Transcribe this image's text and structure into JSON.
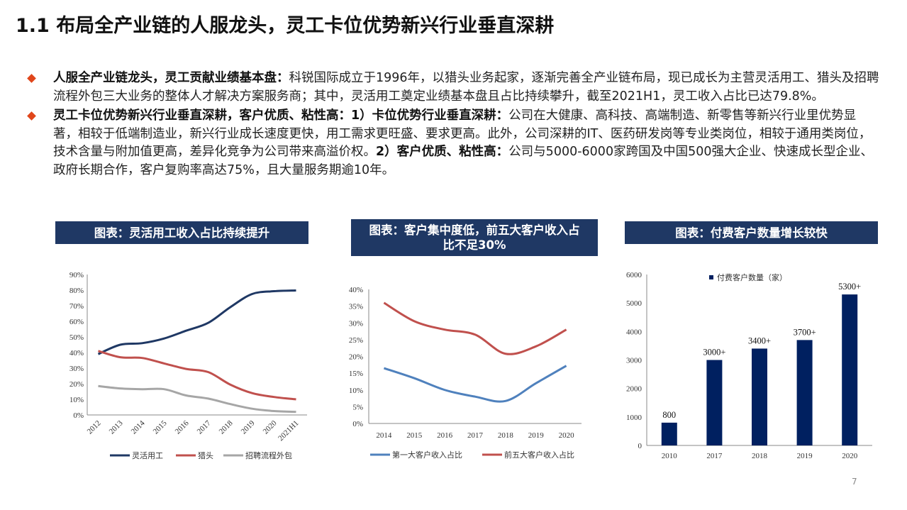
{
  "title": "1.1 布局全产业链的人服龙头，灵工卡位优势新兴行业垂直深耕",
  "bullets": [
    {
      "bold": "人服全产业链龙头，灵工贡献业绩基本盘：",
      "text": "科锐国际成立于1996年，以猎头业务起家，逐渐完善全产业链布局，现已成长为主营灵活用工、猎头及招聘流程外包三大业务的整体人才解决方案服务商；其中，灵活用工奠定业绩基本盘且占比持续攀升，截至2021H1，灵工收入占比已达79.8%。"
    },
    {
      "bold": "灵工卡位优势新兴行业垂直深耕，客户优质、粘性高：1）卡位优势行业垂直深耕：",
      "text": "公司在大健康、高科技、高端制造、新零售等新兴行业里优势显著，相较于低端制造业，新兴行业成长速度更快，用工需求更旺盛、要求更高。此外，公司深耕的IT、医药研发岗等专业类岗位，相较于通用类岗位，技术含量与附加值更高，差异化竞争为公司带来高溢价权。",
      "bold2": "2）客户优质、粘性高：",
      "text2": "公司与5000-6000家跨国及中国500强大企业、快速成长型企业、政府长期合作，客户复购率高达75%，且大量服务期逾10年。"
    }
  ],
  "captions": {
    "c1": "图表：灵活用工收入占比持续提升",
    "c2": "图表：客户集中度低，前五大客户收入占比不足30%",
    "c3": "图表：付费客户数量增长较快"
  },
  "page_number": "7",
  "chart_data": [
    {
      "type": "line",
      "categories": [
        "2012",
        "2013",
        "2014",
        "2015",
        "2016",
        "2017",
        "2018",
        "2019",
        "2020",
        "2021H1"
      ],
      "ylim": [
        0,
        90
      ],
      "y_ticks": [
        "0%",
        "10%",
        "20%",
        "30%",
        "40%",
        "50%",
        "60%",
        "70%",
        "80%",
        "90%"
      ],
      "series": [
        {
          "name": "灵活用工",
          "color": "#1f3864",
          "values": [
            39,
            45,
            46,
            49,
            54,
            59,
            69,
            77.5,
            79.3,
            79.8
          ]
        },
        {
          "name": "猎头",
          "color": "#c0504d",
          "values": [
            41,
            37,
            36.5,
            33,
            29.5,
            27.5,
            19.5,
            14,
            11.5,
            10
          ]
        },
        {
          "name": "招聘流程外包",
          "color": "#a6a6a6",
          "values": [
            18.5,
            17,
            16.5,
            16.5,
            12.5,
            10.5,
            7,
            4,
            2.5,
            2
          ]
        }
      ]
    },
    {
      "type": "line",
      "categories": [
        "2014",
        "2015",
        "2016",
        "2017",
        "2018",
        "2019",
        "2020"
      ],
      "ylim": [
        0,
        40
      ],
      "y_ticks": [
        "0%",
        "5%",
        "10%",
        "15%",
        "20%",
        "25%",
        "30%",
        "35%",
        "40%"
      ],
      "series": [
        {
          "name": "第一大客户收入占比",
          "color": "#4f81bd",
          "values": [
            16.5,
            13.5,
            10,
            8,
            6.7,
            12,
            17.2
          ]
        },
        {
          "name": "前五大客户收入占比",
          "color": "#c0504d",
          "values": [
            36,
            30.5,
            28,
            26.5,
            20.8,
            23,
            28
          ]
        }
      ]
    },
    {
      "type": "bar",
      "categories": [
        "2010",
        "2017",
        "2018",
        "2019",
        "2020"
      ],
      "ylim": [
        0,
        6000
      ],
      "y_ticks": [
        "0",
        "1000",
        "2000",
        "3000",
        "4000",
        "5000",
        "6000"
      ],
      "series": [
        {
          "name": "付费客户数量（家）",
          "color": "#002060",
          "values": [
            800,
            3000,
            3400,
            3700,
            5300
          ]
        }
      ],
      "data_labels": [
        "800",
        "3000+",
        "3400+",
        "3700+",
        "5300+"
      ]
    }
  ]
}
